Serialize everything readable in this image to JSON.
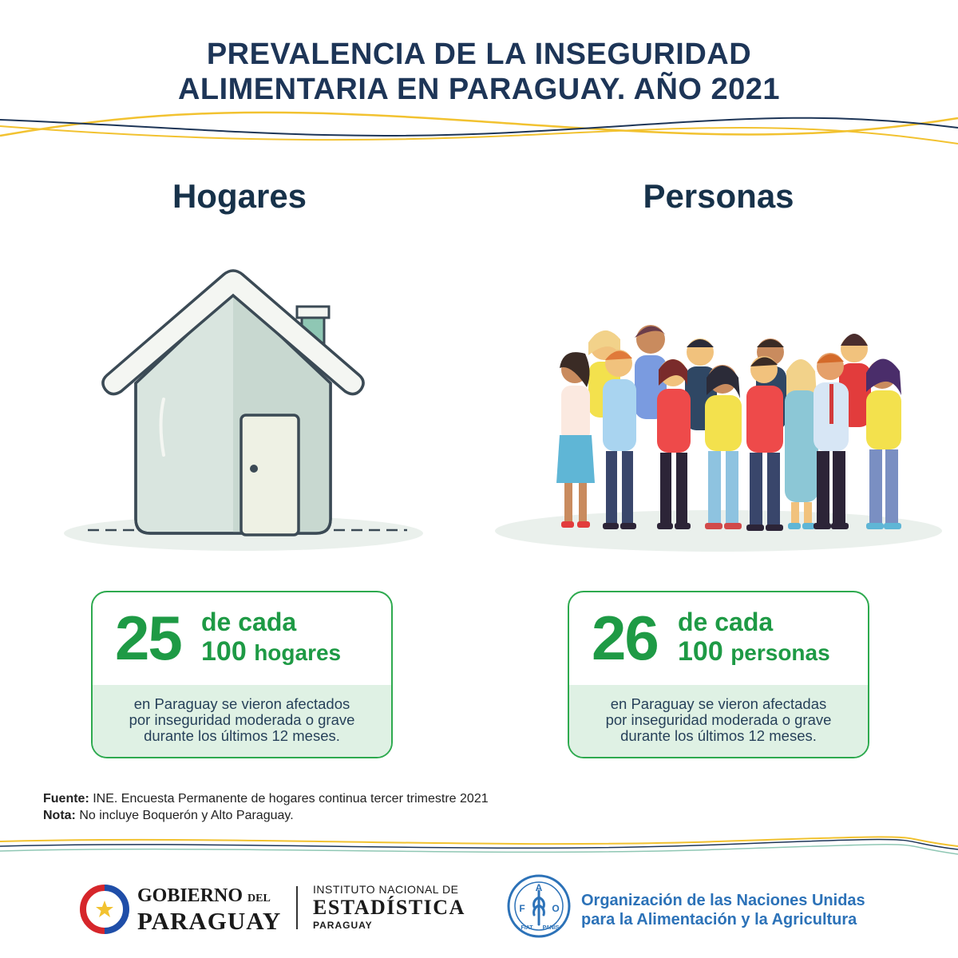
{
  "title": {
    "line1": "PREVALENCIA DE LA INSEGURIDAD",
    "line2": "ALIMENTARIA EN PARAGUAY. AÑO 2021"
  },
  "hogares": {
    "heading": "Hogares",
    "number": "25",
    "of_each": "de cada",
    "total": "100",
    "unit": "hogares",
    "desc1": "en Paraguay se vieron afectados",
    "desc2": "por inseguridad moderada o grave",
    "desc3": "durante los últimos 12 meses."
  },
  "personas": {
    "heading": "Personas",
    "number": "26",
    "of_each": "de cada",
    "total": "100",
    "unit": "personas",
    "desc1": "en Paraguay se vieron afectadas",
    "desc2": "por inseguridad moderada o grave",
    "desc3": "durante los últimos 12 meses."
  },
  "notes": {
    "source_label": "Fuente:",
    "source_text": " INE. Encuesta Permanente de hogares continua tercer trimestre 2021",
    "note_label": "Nota:",
    "note_text": " No incluye Boquerón y Alto Paraguay."
  },
  "footer": {
    "gob_l1": "GOBIERNO",
    "gob_del": "DEL",
    "gob_l2": "PARAGUAY",
    "ine_l1": "INSTITUTO NACIONAL DE",
    "ine_l2": "ESTADÍSTICA",
    "ine_l3": "PARAGUAY",
    "fao_l1": "Organización de las Naciones Unidas",
    "fao_l2": "para la Alimentación y la Agricultura",
    "fao_logo_letters": "FAO",
    "fao_logo_motto": "FIAT PANIS"
  },
  "colors": {
    "title": "#1d3557",
    "green": "#1e9a45",
    "green_light": "#dff1e4",
    "wave_yellow": "#f2c230",
    "wave_navy": "#1d3557",
    "fao_blue": "#2c72b8"
  }
}
